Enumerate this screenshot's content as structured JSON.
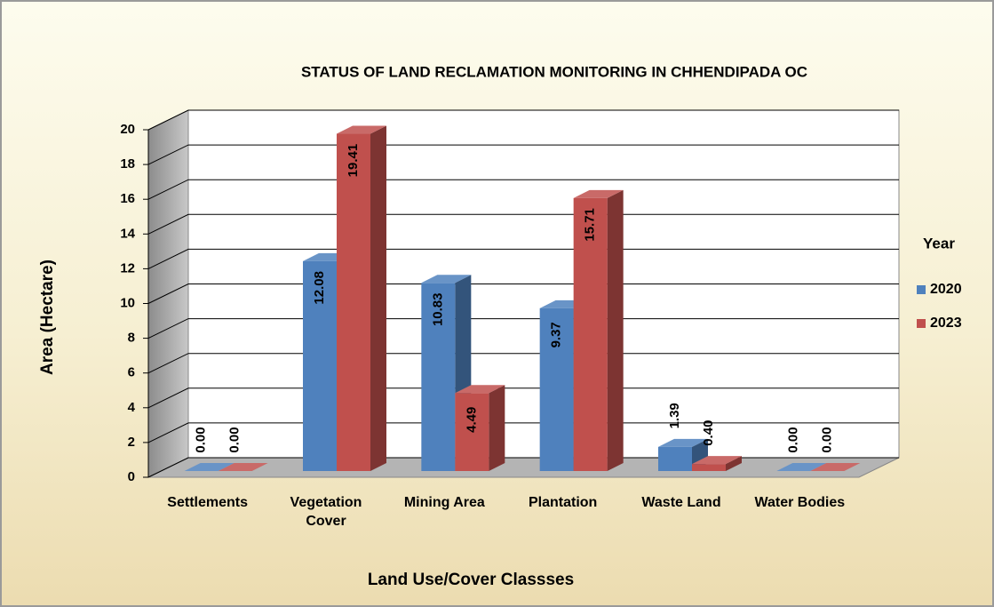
{
  "chart_data": {
    "type": "bar3d",
    "title": "STATUS OF LAND RECLAMATION MONITORING IN CHHENDIPADA OC",
    "x_label": "Land Use/Cover Classses",
    "y_label": "Area (Hectare)",
    "legend_title": "Year",
    "legend_position": "right",
    "grid": true,
    "categories": [
      "Settlements",
      "Vegetation Cover",
      "Mining Area",
      "Plantation",
      "Waste Land",
      "Water Bodies"
    ],
    "series": [
      {
        "name": "2020",
        "color": "#4f81bd",
        "values": [
          0,
          12.08,
          10.83,
          9.37,
          1.39,
          0
        ],
        "value_labels": [
          "0.00",
          "12.08",
          "10.83",
          "9.37",
          "1.39",
          "0.00"
        ]
      },
      {
        "name": "2023",
        "color": "#c0504d",
        "values": [
          0,
          19.41,
          4.49,
          15.71,
          0.4,
          0
        ],
        "value_labels": [
          "0.00",
          "19.41",
          "4.49",
          "15.71",
          "0.40",
          "0.00"
        ]
      }
    ],
    "ylim": [
      0,
      20
    ],
    "yticks": [
      0,
      2,
      4,
      6,
      8,
      10,
      12,
      14,
      16,
      18,
      20
    ]
  }
}
